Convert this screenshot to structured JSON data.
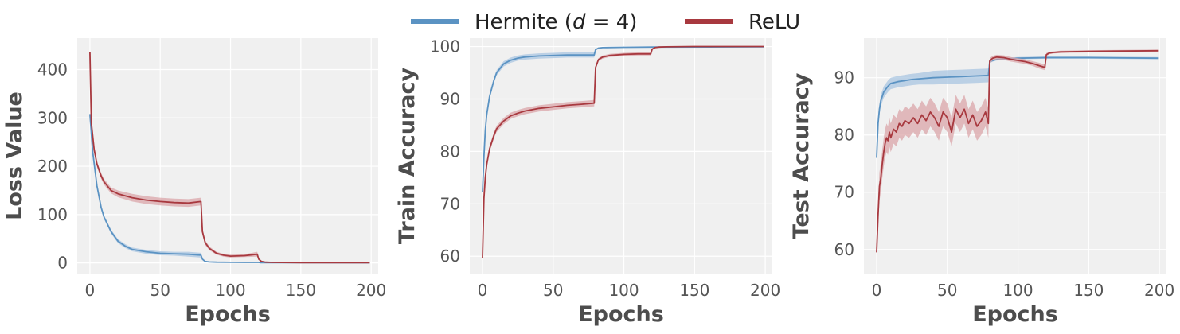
{
  "legend": {
    "entries": [
      {
        "label": "Hermite (d = 4)",
        "prefix": "Hermite (",
        "italic": "d",
        "suffix": " = 4)",
        "color": "#5b93c3"
      },
      {
        "label": "ReLU",
        "color": "#a8393f"
      }
    ]
  },
  "chart_data": [
    {
      "type": "line",
      "xlabel": "Epochs",
      "ylabel": "Loss Value",
      "xlim": [
        -9,
        205
      ],
      "ylim": [
        -22,
        465
      ],
      "xticks": [
        0,
        50,
        100,
        150,
        200
      ],
      "yticks": [
        0,
        100,
        200,
        300,
        400
      ],
      "grid": true,
      "series": [
        {
          "name": "Hermite (d = 4)",
          "color": "#5b93c3",
          "band_color": "#a9c6e2",
          "x": [
            0,
            2,
            5,
            8,
            10,
            15,
            20,
            25,
            30,
            40,
            50,
            60,
            70,
            79,
            80,
            82,
            85,
            90,
            100,
            110,
            120,
            121,
            130,
            150,
            199
          ],
          "y": [
            308,
            230,
            160,
            115,
            95,
            65,
            45,
            35,
            28,
            23,
            20,
            19,
            18,
            16,
            8,
            3,
            2,
            1.5,
            1.2,
            1,
            1,
            0.5,
            0.5,
            0.3,
            0.2
          ],
          "band": [
            0,
            4,
            4,
            4,
            4,
            4,
            4,
            4,
            4,
            4,
            4,
            4,
            5,
            5,
            2,
            1,
            0,
            0,
            0,
            0,
            0,
            0,
            0,
            0,
            0
          ]
        },
        {
          "name": "ReLU",
          "color": "#a8393f",
          "band_color": "#dba5a9",
          "x": [
            0,
            1,
            3,
            5,
            8,
            10,
            15,
            20,
            30,
            40,
            50,
            60,
            70,
            79,
            80,
            82,
            85,
            90,
            95,
            100,
            110,
            119,
            120,
            122,
            125,
            130,
            150,
            199
          ],
          "y": [
            437,
            290,
            235,
            205,
            180,
            168,
            150,
            143,
            135,
            130,
            127,
            125,
            124,
            127,
            65,
            42,
            30,
            20,
            16,
            14,
            15,
            18,
            8,
            3,
            1.5,
            1,
            0.6,
            0.4
          ],
          "band": [
            0,
            6,
            6,
            6,
            6,
            6,
            6,
            7,
            8,
            8,
            8,
            8,
            8,
            8,
            6,
            5,
            4,
            3,
            3,
            3,
            3,
            5,
            2,
            0,
            0,
            0,
            0,
            0
          ]
        }
      ]
    },
    {
      "type": "line",
      "xlabel": "Epochs",
      "ylabel": "Train Accuracy",
      "xlim": [
        -9,
        205
      ],
      "ylim": [
        56.7,
        101.6
      ],
      "xticks": [
        0,
        50,
        100,
        150,
        200
      ],
      "yticks": [
        60,
        70,
        80,
        90,
        100
      ],
      "grid": true,
      "series": [
        {
          "name": "Hermite (d = 4)",
          "color": "#5b93c3",
          "band_color": "#a9c6e2",
          "x": [
            0,
            1,
            2,
            3,
            5,
            8,
            10,
            15,
            20,
            25,
            30,
            40,
            50,
            60,
            70,
            79,
            80,
            82,
            85,
            100,
            120,
            199
          ],
          "y": [
            72.2,
            79,
            84,
            87,
            90.5,
            93.5,
            95,
            96.7,
            97.4,
            97.8,
            98,
            98.2,
            98.3,
            98.4,
            98.4,
            98.4,
            99.4,
            99.7,
            99.8,
            99.85,
            99.9,
            99.95
          ],
          "band": [
            0,
            0.5,
            0.5,
            0.5,
            0.5,
            0.5,
            0.5,
            0.5,
            0.5,
            0.5,
            0.5,
            0.5,
            0.5,
            0.5,
            0.5,
            0.5,
            0.2,
            0.1,
            0.1,
            0,
            0,
            0
          ]
        },
        {
          "name": "ReLU",
          "color": "#a8393f",
          "band_color": "#dba5a9",
          "x": [
            0,
            1,
            2,
            3,
            5,
            8,
            10,
            15,
            20,
            25,
            30,
            40,
            50,
            60,
            70,
            79,
            80,
            82,
            85,
            90,
            100,
            110,
            119,
            120,
            122,
            125,
            130,
            150,
            199
          ],
          "y": [
            59.6,
            71,
            75,
            77.5,
            80.5,
            83,
            84.3,
            85.8,
            86.8,
            87.3,
            87.7,
            88.2,
            88.5,
            88.8,
            89,
            89.2,
            96,
            97.5,
            98,
            98.3,
            98.5,
            98.6,
            98.6,
            99.5,
            99.8,
            99.9,
            99.95,
            100,
            100
          ],
          "band": [
            0,
            0.6,
            0.6,
            0.6,
            0.6,
            0.6,
            0.6,
            0.6,
            0.6,
            0.6,
            0.6,
            0.6,
            0.6,
            0.6,
            0.6,
            0.6,
            0.4,
            0.3,
            0.3,
            0.3,
            0.3,
            0.3,
            0.3,
            0.1,
            0,
            0,
            0,
            0,
            0
          ]
        }
      ]
    },
    {
      "type": "line",
      "xlabel": "Epochs",
      "ylabel": "Test Accuracy",
      "xlim": [
        -9,
        205
      ],
      "ylim": [
        55.8,
        96.9
      ],
      "xticks": [
        0,
        50,
        100,
        150,
        200
      ],
      "yticks": [
        60,
        70,
        80,
        90
      ],
      "grid": true,
      "series": [
        {
          "name": "Hermite (d = 4)",
          "color": "#5b93c3",
          "band_color": "#a9c6e2",
          "x": [
            0,
            1,
            2,
            3,
            5,
            8,
            10,
            15,
            20,
            25,
            30,
            40,
            50,
            60,
            70,
            79,
            80,
            82,
            85,
            100,
            120,
            150,
            199
          ],
          "y": [
            76,
            82,
            84.5,
            86,
            87.5,
            88.5,
            89,
            89.3,
            89.5,
            89.7,
            89.8,
            90,
            90.1,
            90.2,
            90.3,
            90.4,
            92.8,
            93,
            93.2,
            93.4,
            93.5,
            93.5,
            93.4
          ],
          "band": [
            0,
            1,
            1,
            1,
            1,
            1,
            1,
            1,
            1,
            1,
            1,
            1.2,
            1.2,
            1.2,
            1.2,
            1.2,
            0.3,
            0.2,
            0.2,
            0.2,
            0.2,
            0.2,
            0.2
          ]
        },
        {
          "name": "ReLU",
          "color": "#a8393f",
          "band_color": "#dba5a9",
          "x": [
            0,
            1,
            2,
            3,
            4,
            5,
            6,
            7,
            8,
            9,
            10,
            12,
            14,
            16,
            18,
            20,
            23,
            26,
            29,
            32,
            35,
            38,
            41,
            44,
            47,
            50,
            53,
            56,
            59,
            62,
            65,
            68,
            71,
            74,
            77,
            79,
            80,
            82,
            85,
            90,
            95,
            100,
            105,
            110,
            115,
            119,
            120,
            122,
            125,
            130,
            150,
            199
          ],
          "y": [
            59.5,
            66,
            71,
            72.5,
            75,
            77,
            78.5,
            79.5,
            79,
            80.5,
            79.5,
            81,
            80.5,
            82,
            81.5,
            82.5,
            82,
            83,
            82,
            83.5,
            82.5,
            84,
            83,
            81.5,
            84,
            83,
            80.5,
            84.5,
            83,
            84.5,
            82,
            83.5,
            81.5,
            82.5,
            84,
            82,
            92.9,
            93.4,
            93.6,
            93.5,
            93.2,
            93,
            92.8,
            92.5,
            92.1,
            91.8,
            94,
            94.3,
            94.4,
            94.5,
            94.6,
            94.7
          ],
          "band": [
            0,
            2,
            2.5,
            2.5,
            2.5,
            2.5,
            2.5,
            2.5,
            2.5,
            2.5,
            2.5,
            2.5,
            2.5,
            2.5,
            2.5,
            2.5,
            2.5,
            2.5,
            2.5,
            2.5,
            2.5,
            2.5,
            2.5,
            2.5,
            2.5,
            2.5,
            2.5,
            2.5,
            2.5,
            2.5,
            2.5,
            2.5,
            2.5,
            2.5,
            2.5,
            2.5,
            0.5,
            0.4,
            0.4,
            0.4,
            0.4,
            0.4,
            0.4,
            0.4,
            0.5,
            0.5,
            0.3,
            0.2,
            0.2,
            0.2,
            0.2,
            0.2
          ]
        }
      ]
    }
  ]
}
